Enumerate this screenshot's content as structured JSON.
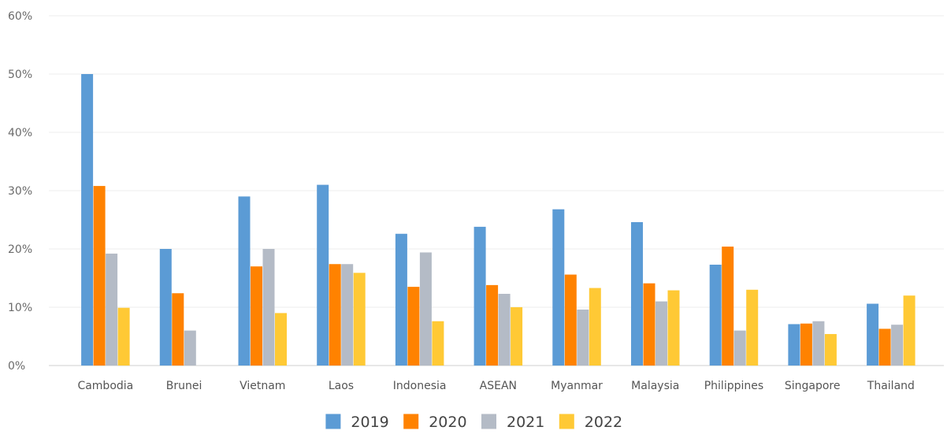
{
  "chart_data": {
    "type": "bar",
    "title": "",
    "xlabel": "",
    "ylabel": "",
    "ylim": [
      0,
      60
    ],
    "y_ticks": [
      0,
      10,
      20,
      30,
      40,
      50,
      60
    ],
    "y_tick_labels": [
      "0%",
      "10%",
      "20%",
      "30%",
      "40%",
      "50%",
      "60%"
    ],
    "grid": true,
    "legend_position": "bottom-center",
    "categories": [
      "Cambodia",
      "Brunei",
      "Vietnam",
      "Laos",
      "Indonesia",
      "ASEAN",
      "Myanmar",
      "Malaysia",
      "Philippines",
      "Singapore",
      "Thailand"
    ],
    "series": [
      {
        "name": "2019",
        "color": "#5b9bd5",
        "values": [
          50.0,
          20.0,
          29.0,
          31.0,
          22.6,
          23.8,
          26.8,
          24.6,
          17.3,
          7.1,
          10.6
        ]
      },
      {
        "name": "2020",
        "color": "#ff8200",
        "values": [
          30.8,
          12.4,
          17.0,
          17.4,
          13.5,
          13.8,
          15.6,
          14.1,
          20.4,
          7.2,
          6.3
        ]
      },
      {
        "name": "2021",
        "color": "#b4bbc6",
        "values": [
          19.2,
          6.0,
          20.0,
          17.4,
          19.4,
          12.3,
          9.6,
          11.0,
          6.0,
          7.6,
          7.0
        ]
      },
      {
        "name": "2022",
        "color": "#ffc935",
        "values": [
          9.9,
          0,
          9.0,
          15.9,
          7.6,
          10.0,
          13.3,
          12.9,
          13.0,
          5.4,
          12.0
        ]
      }
    ]
  }
}
